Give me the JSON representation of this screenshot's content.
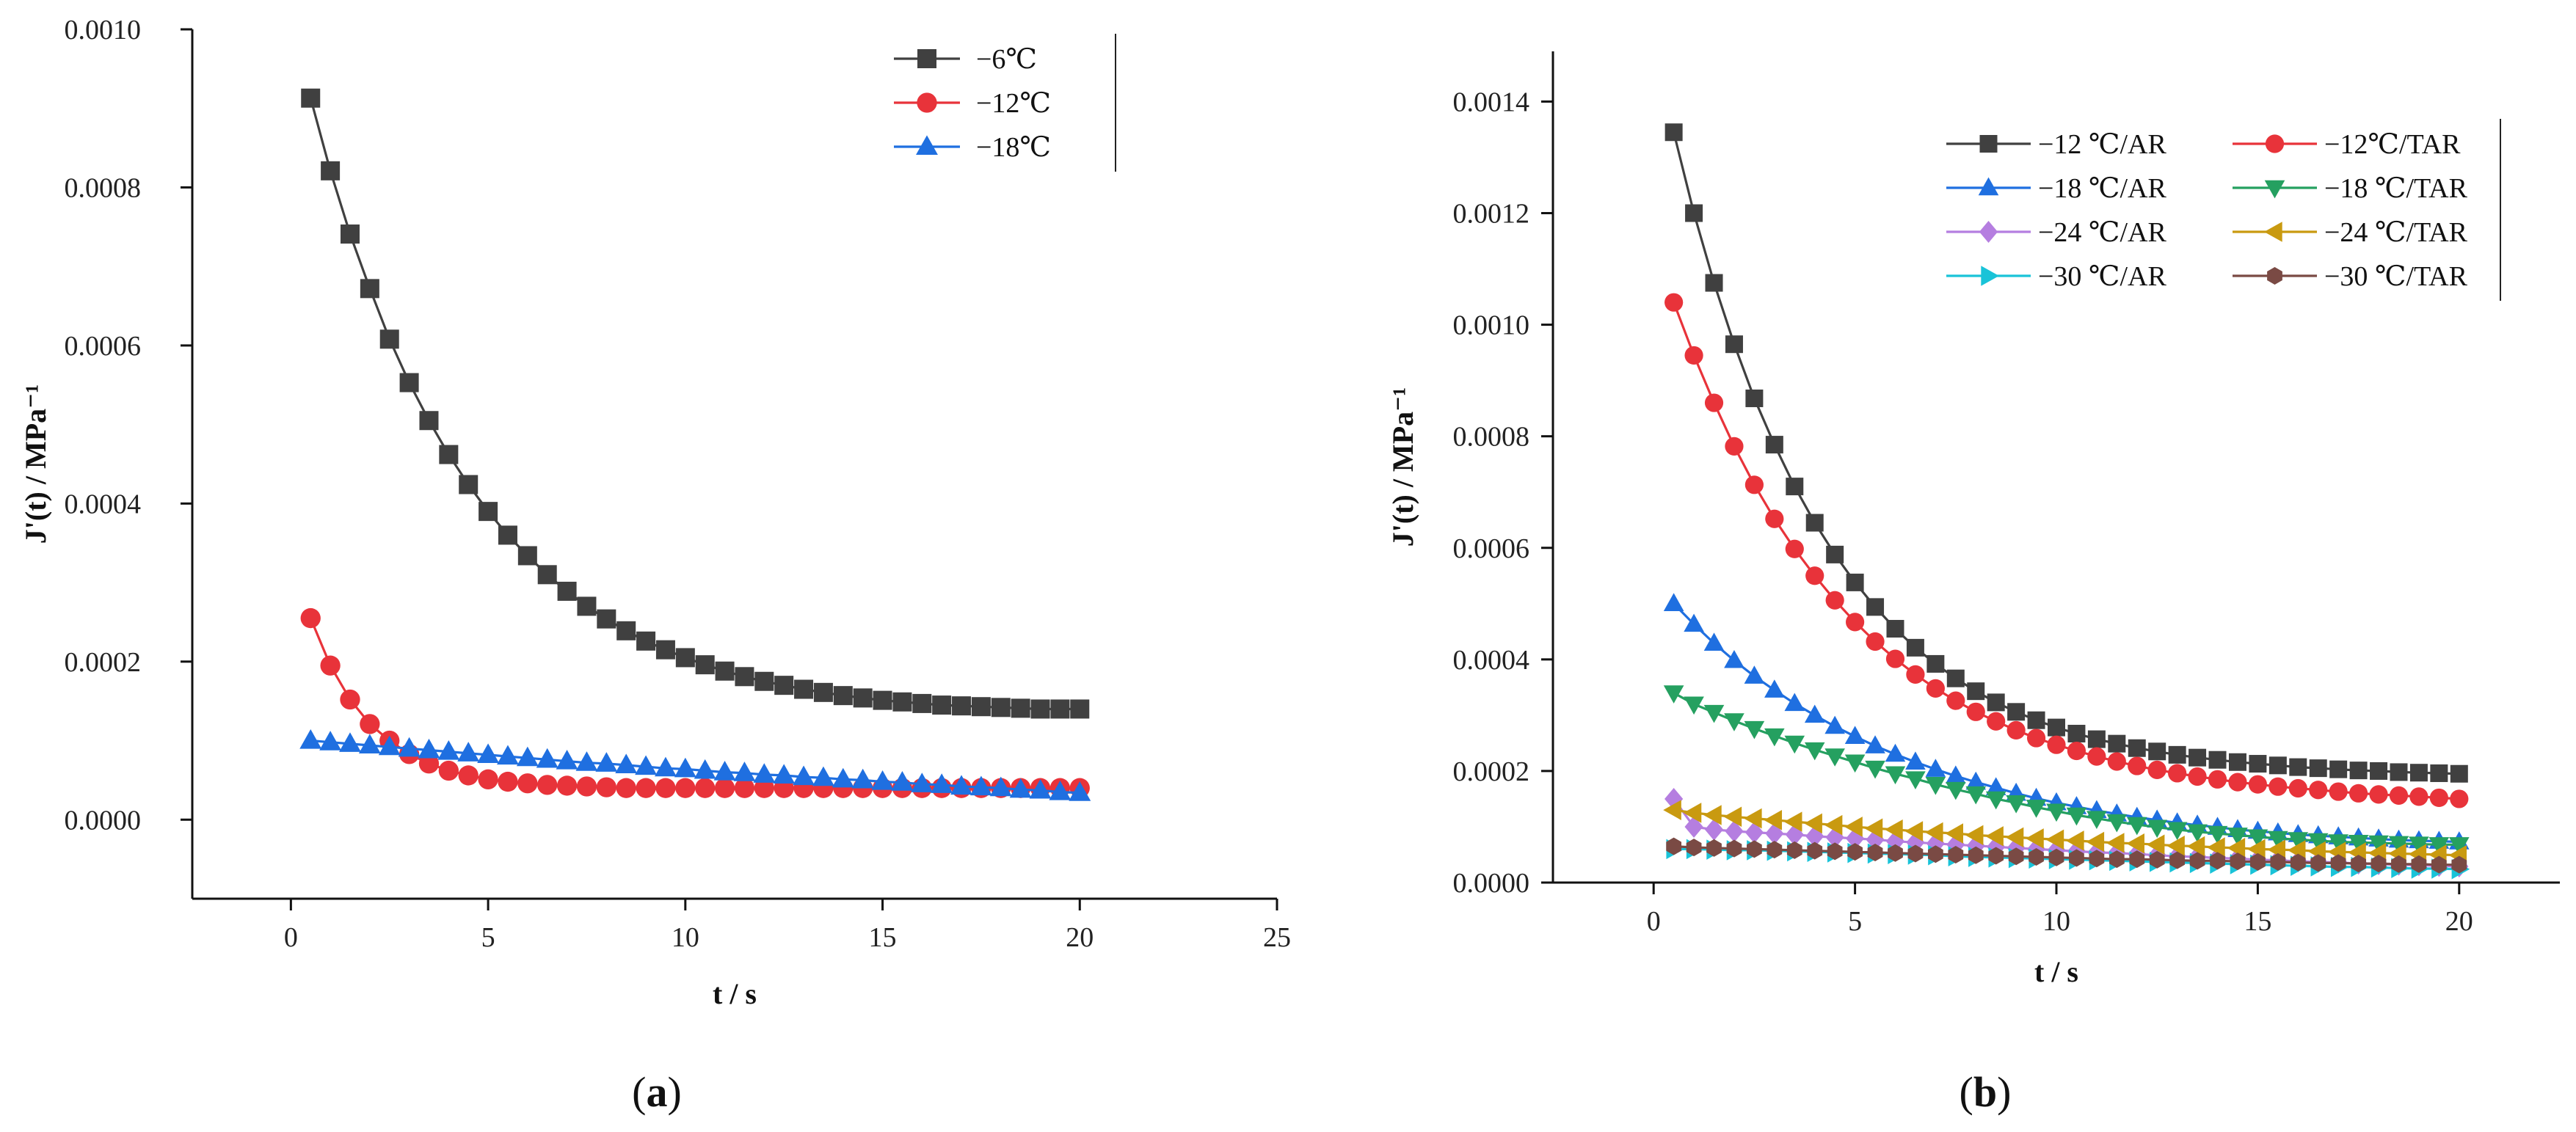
{
  "chart_data": [
    {
      "type": "line",
      "panel_label": "a",
      "xlabel": "t / s",
      "ylabel": "J'(t) / MPa⁻¹",
      "xlim": [
        -2.5,
        25
      ],
      "ylim": [
        -0.0001,
        0.001
      ],
      "xticks": [
        "0",
        "5",
        "10",
        "15",
        "20",
        "25"
      ],
      "yticks": [
        "0.0000",
        "0.0002",
        "0.0004",
        "0.0006",
        "0.0008",
        "0.0010"
      ],
      "legend_position": "top-right",
      "grid": false,
      "x": [
        0.5,
        1,
        1.5,
        2,
        2.5,
        3,
        3.5,
        4,
        4.5,
        5,
        5.5,
        6,
        6.5,
        7,
        7.5,
        8,
        8.5,
        9,
        9.5,
        10,
        10.5,
        11,
        11.5,
        12,
        12.5,
        13,
        13.5,
        14,
        14.5,
        15,
        15.5,
        16,
        16.5,
        17,
        17.5,
        18,
        18.5,
        19,
        19.5,
        20
      ],
      "series": [
        {
          "name": "−6℃",
          "color": "#404040",
          "marker": "square",
          "values": [
            0.000913,
            0.000821,
            0.000741,
            0.000672,
            0.000608,
            0.000553,
            0.000505,
            0.000462,
            0.000424,
            0.00039,
            0.00036,
            0.000334,
            0.00031,
            0.000289,
            0.00027,
            0.000254,
            0.000239,
            0.000226,
            0.000215,
            0.000205,
            0.000196,
            0.000188,
            0.000181,
            0.000175,
            0.00017,
            0.000165,
            0.000161,
            0.000157,
            0.000154,
            0.000151,
            0.000149,
            0.000147,
            0.000145,
            0.000144,
            0.000143,
            0.000142,
            0.000141,
            0.00014,
            0.00014,
            0.00014
          ]
        },
        {
          "name": "−12℃",
          "color": "#e8333a",
          "marker": "circle",
          "values": [
            0.000255,
            0.000195,
            0.000152,
            0.000121,
            0.0001,
            8.3e-05,
            7.1e-05,
            6.2e-05,
            5.6e-05,
            5.1e-05,
            4.8e-05,
            4.6e-05,
            4.4e-05,
            4.3e-05,
            4.2e-05,
            4.1e-05,
            4e-05,
            4e-05,
            4e-05,
            4e-05,
            4e-05,
            4e-05,
            4e-05,
            4e-05,
            4e-05,
            4e-05,
            4e-05,
            4e-05,
            4e-05,
            4e-05,
            4e-05,
            4e-05,
            4e-05,
            4e-05,
            4e-05,
            4e-05,
            4e-05,
            4e-05,
            4e-05,
            4e-05
          ]
        },
        {
          "name": "−18℃",
          "color": "#1f6fe0",
          "marker": "triangle-up",
          "values": [
            0.0001,
            9.8e-05,
            9.6e-05,
            9.4e-05,
            9.2e-05,
            9e-05,
            8.8e-05,
            8.6e-05,
            8.4e-05,
            8.2e-05,
            8e-05,
            7.8e-05,
            7.6e-05,
            7.4e-05,
            7.2e-05,
            7.1e-05,
            6.9e-05,
            6.7e-05,
            6.5e-05,
            6.4e-05,
            6.2e-05,
            6e-05,
            5.9e-05,
            5.7e-05,
            5.6e-05,
            5.4e-05,
            5.3e-05,
            5.1e-05,
            5e-05,
            4.8e-05,
            4.7e-05,
            4.5e-05,
            4.4e-05,
            4.2e-05,
            4.1e-05,
            4e-05,
            3.8e-05,
            3.7e-05,
            3.5e-05,
            3.4e-05
          ]
        }
      ]
    },
    {
      "type": "line",
      "panel_label": "b",
      "xlabel": "t / s",
      "ylabel": "J'(t) / MPa⁻¹",
      "xlim": [
        -2.5,
        22.5
      ],
      "ylim": [
        0,
        0.00149
      ],
      "xticks": [
        "0",
        "5",
        "10",
        "15",
        "20"
      ],
      "yticks": [
        "0.0000",
        "0.0002",
        "0.0004",
        "0.0006",
        "0.0008",
        "0.0010",
        "0.0012",
        "0.0014"
      ],
      "legend_position": "top-right",
      "grid": false,
      "x": [
        0.5,
        1,
        1.5,
        2,
        2.5,
        3,
        3.5,
        4,
        4.5,
        5,
        5.5,
        6,
        6.5,
        7,
        7.5,
        8,
        8.5,
        9,
        9.5,
        10,
        10.5,
        11,
        11.5,
        12,
        12.5,
        13,
        13.5,
        14,
        14.5,
        15,
        15.5,
        16,
        16.5,
        17,
        17.5,
        18,
        18.5,
        19,
        19.5,
        20
      ],
      "series": [
        {
          "name": "−12 ℃/AR",
          "color": "#404040",
          "marker": "square",
          "values": [
            0.001345,
            0.0012,
            0.001075,
            0.000965,
            0.000868,
            0.000785,
            0.00071,
            0.000645,
            0.000588,
            0.000538,
            0.000494,
            0.000455,
            0.000421,
            0.000392,
            0.000366,
            0.000343,
            0.000323,
            0.000306,
            0.000291,
            0.000278,
            0.000267,
            0.000257,
            0.000249,
            0.000241,
            0.000235,
            0.000229,
            0.000224,
            0.00022,
            0.000216,
            0.000213,
            0.00021,
            0.000207,
            0.000205,
            0.000203,
            0.000201,
            0.0002,
            0.000198,
            0.000197,
            0.000196,
            0.000195
          ]
        },
        {
          "name": "−12℃/TAR",
          "color": "#e8333a",
          "marker": "circle",
          "values": [
            0.00104,
            0.000945,
            0.00086,
            0.000782,
            0.000713,
            0.000652,
            0.000598,
            0.00055,
            0.000506,
            0.000467,
            0.000432,
            0.000401,
            0.000373,
            0.000348,
            0.000326,
            0.000306,
            0.000289,
            0.000273,
            0.000259,
            0.000247,
            0.000236,
            0.000226,
            0.000217,
            0.000209,
            0.000202,
            0.000196,
            0.00019,
            0.000185,
            0.00018,
            0.000176,
            0.000172,
            0.000169,
            0.000166,
            0.000163,
            0.00016,
            0.000158,
            0.000156,
            0.000154,
            0.000152,
            0.00015
          ]
        },
        {
          "name": "−18 ℃/AR",
          "color": "#1f6fe0",
          "marker": "triangle-up",
          "values": [
            0.0005,
            0.000463,
            0.000429,
            0.000398,
            0.00037,
            0.000345,
            0.000321,
            0.0003,
            0.00028,
            0.000262,
            0.000245,
            0.00023,
            0.000216,
            0.000203,
            0.000191,
            0.00018,
            0.00017,
            0.00016,
            0.000151,
            0.000143,
            0.000136,
            0.000129,
            0.000123,
            0.000117,
            0.000112,
            0.000107,
            0.000103,
            9.9e-05,
            9.5e-05,
            9.2e-05,
            8.9e-05,
            8.6e-05,
            8.4e-05,
            8.2e-05,
            8e-05,
            7.8e-05,
            7.6e-05,
            7.5e-05,
            7.4e-05,
            7.3e-05
          ]
        },
        {
          "name": "−18 ℃/TAR",
          "color": "#25a060",
          "marker": "triangle-down",
          "values": [
            0.00034,
            0.00032,
            0.000305,
            0.00029,
            0.000276,
            0.000263,
            0.00025,
            0.000238,
            0.000227,
            0.000216,
            0.000205,
            0.000195,
            0.000186,
            0.000176,
            0.000167,
            0.000159,
            0.00015,
            0.000143,
            0.000135,
            0.000128,
            0.000121,
            0.000115,
            0.000109,
            0.000104,
            9.9e-05,
            9.5e-05,
            9.1e-05,
            8.8e-05,
            8.5e-05,
            8.2e-05,
            7.9e-05,
            7.7e-05,
            7.5e-05,
            7.3e-05,
            7.2e-05,
            7.1e-05,
            7e-05,
            6.9e-05,
            6.8e-05,
            6.8e-05
          ]
        },
        {
          "name": "−24 ℃/AR",
          "color": "#b57ee0",
          "marker": "diamond",
          "values": [
            0.00015,
            0.0001,
            9.5e-05,
            9.2e-05,
            9e-05,
            8.8e-05,
            8.6e-05,
            8.3e-05,
            8.1e-05,
            7.9e-05,
            7.7e-05,
            7.4e-05,
            7.2e-05,
            7e-05,
            6.8e-05,
            6.6e-05,
            6.4e-05,
            6.2e-05,
            6e-05,
            5.8e-05,
            5.6e-05,
            5.4e-05,
            5.3e-05,
            5.1e-05,
            4.9e-05,
            4.7e-05,
            4.6e-05,
            4.4e-05,
            4.3e-05,
            4.1e-05,
            4e-05,
            3.8e-05,
            3.7e-05,
            3.6e-05,
            3.4e-05,
            3.3e-05,
            3.2e-05,
            3.1e-05,
            3e-05,
            2.9e-05
          ]
        },
        {
          "name": "−24 ℃/TAR",
          "color": "#c99a10",
          "marker": "triangle-left",
          "values": [
            0.00013,
            0.000125,
            0.000121,
            0.000118,
            0.000115,
            0.000112,
            0.000109,
            0.000106,
            0.000103,
            0.0001,
            9.7e-05,
            9.5e-05,
            9.2e-05,
            9e-05,
            8.8e-05,
            8.5e-05,
            8.3e-05,
            8.1e-05,
            7.9e-05,
            7.7e-05,
            7.5e-05,
            7.3e-05,
            7.1e-05,
            7e-05,
            6.8e-05,
            6.6e-05,
            6.5e-05,
            6.3e-05,
            6.2e-05,
            6e-05,
            5.9e-05,
            5.8e-05,
            5.6e-05,
            5.5e-05,
            5.4e-05,
            5.3e-05,
            5.2e-05,
            5.1e-05,
            5e-05,
            4.9e-05
          ]
        },
        {
          "name": "−30 ℃/AR",
          "color": "#19c3d8",
          "marker": "triangle-right",
          "values": [
            6e-05,
            6e-05,
            5.9e-05,
            5.8e-05,
            5.8e-05,
            5.7e-05,
            5.6e-05,
            5.5e-05,
            5.4e-05,
            5.3e-05,
            5.2e-05,
            5.1e-05,
            5e-05,
            4.9e-05,
            4.7e-05,
            4.6e-05,
            4.5e-05,
            4.4e-05,
            4.3e-05,
            4.2e-05,
            4.1e-05,
            4e-05,
            3.9e-05,
            3.8e-05,
            3.7e-05,
            3.6e-05,
            3.5e-05,
            3.4e-05,
            3.3e-05,
            3.2e-05,
            3.1e-05,
            3e-05,
            2.9e-05,
            2.8e-05,
            2.8e-05,
            2.7e-05,
            2.6e-05,
            2.5e-05,
            2.5e-05,
            2.4e-05
          ]
        },
        {
          "name": "−30 ℃/TAR",
          "color": "#7a4a44",
          "marker": "hexagon",
          "values": [
            6.5e-05,
            6.3e-05,
            6.2e-05,
            6.1e-05,
            6e-05,
            5.9e-05,
            5.8e-05,
            5.7e-05,
            5.6e-05,
            5.5e-05,
            5.4e-05,
            5.3e-05,
            5.2e-05,
            5.1e-05,
            5e-05,
            4.9e-05,
            4.8e-05,
            4.7e-05,
            4.6e-05,
            4.5e-05,
            4.4e-05,
            4.3e-05,
            4.2e-05,
            4.2e-05,
            4.1e-05,
            4e-05,
            3.9e-05,
            3.9e-05,
            3.8e-05,
            3.7e-05,
            3.7e-05,
            3.6e-05,
            3.5e-05,
            3.5e-05,
            3.4e-05,
            3.4e-05,
            3.3e-05,
            3.3e-05,
            3.2e-05,
            3.2e-05
          ]
        }
      ]
    }
  ]
}
